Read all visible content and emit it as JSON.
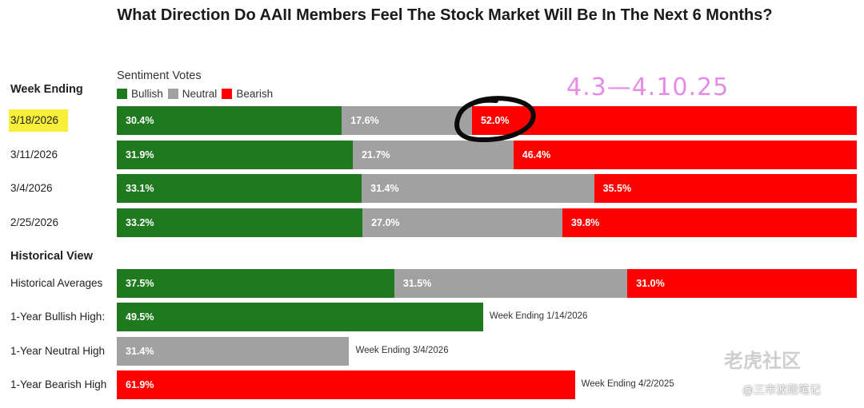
{
  "title": "What Direction Do AAII Members Feel The Stock Market Will Be In The Next 6 Months?",
  "week_header": "Week Ending",
  "historical_header": "Historical View",
  "sentiment_votes_label": "Sentiment Votes",
  "legend": [
    {
      "name": "Bullish",
      "color": "#1f7a1f"
    },
    {
      "name": "Neutral",
      "color": "#a1a1a1"
    },
    {
      "name": "Bearish",
      "color": "#ff0000"
    }
  ],
  "annotation": "4.3—4.10.25",
  "watermark": {
    "brand": "老虎社区",
    "handle": "@三市波段笔记"
  },
  "chart_data": {
    "type": "bar",
    "stacked": true,
    "orientation": "horizontal",
    "xlim": [
      0,
      100
    ],
    "unit": "%",
    "weekly": [
      {
        "label": "3/18/2026",
        "highlight": true,
        "bullish": 30.4,
        "neutral": 17.6,
        "bearish": 52.0,
        "bullish_text": "30.4%",
        "neutral_text": "17.6%",
        "bearish_text": "52.0%"
      },
      {
        "label": "3/11/2026",
        "highlight": false,
        "bullish": 31.9,
        "neutral": 21.7,
        "bearish": 46.4,
        "bullish_text": "31.9%",
        "neutral_text": "21.7%",
        "bearish_text": "46.4%"
      },
      {
        "label": "3/4/2026",
        "highlight": false,
        "bullish": 33.1,
        "neutral": 31.4,
        "bearish": 35.5,
        "bullish_text": "33.1%",
        "neutral_text": "31.4%",
        "bearish_text": "35.5%"
      },
      {
        "label": "2/25/2026",
        "highlight": false,
        "bullish": 33.2,
        "neutral": 27.0,
        "bearish": 39.8,
        "bullish_text": "33.2%",
        "neutral_text": "27.0%",
        "bearish_text": "39.8%"
      }
    ],
    "historical_averages": {
      "label": "Historical Averages",
      "bullish": 37.5,
      "neutral": 31.5,
      "bearish": 31.0,
      "bullish_text": "37.5%",
      "neutral_text": "31.5%",
      "bearish_text": "31.0%"
    },
    "highs": [
      {
        "label": "1-Year Bullish High:",
        "value": 49.5,
        "value_text": "49.5%",
        "kind": "bullish",
        "note": "Week Ending 1/14/2026"
      },
      {
        "label": "1-Year Neutral High",
        "value": 31.4,
        "value_text": "31.4%",
        "kind": "neutral",
        "note": "Week Ending 3/4/2026"
      },
      {
        "label": "1-Year Bearish High",
        "value": 61.9,
        "value_text": "61.9%",
        "kind": "bearish",
        "note": "Week Ending 4/2/2025"
      }
    ]
  }
}
